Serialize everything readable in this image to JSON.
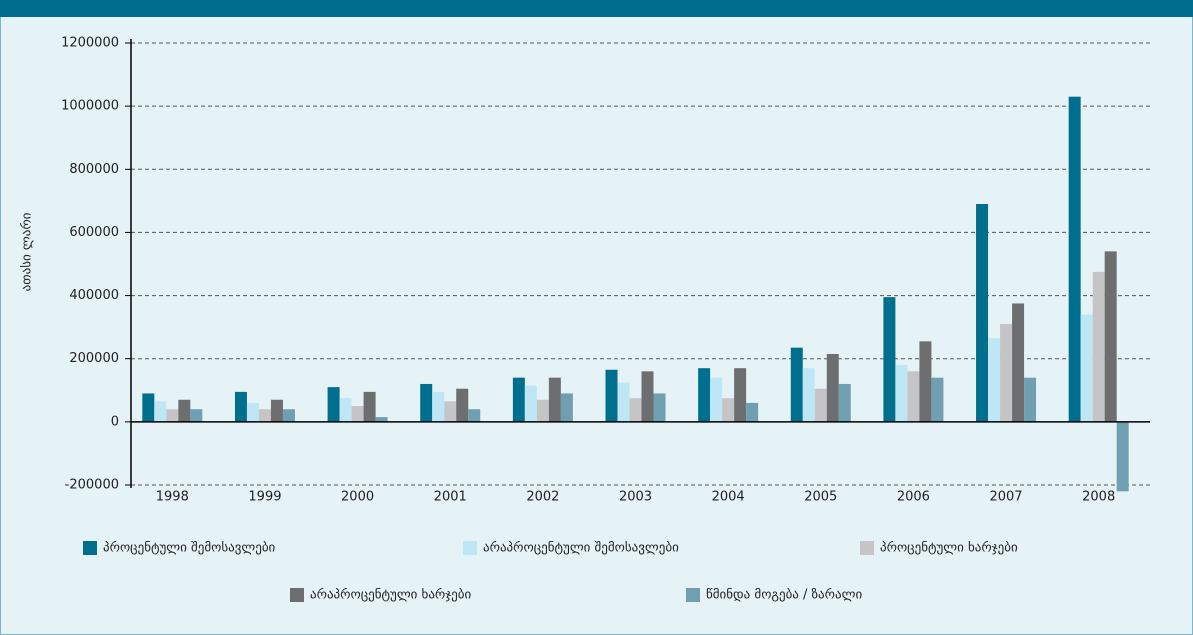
{
  "chart_data": {
    "type": "bar",
    "y_label": "ათასი ლარი",
    "categories": [
      "1998",
      "1999",
      "2000",
      "2001",
      "2002",
      "2003",
      "2004",
      "2005",
      "2006",
      "2007",
      "2008"
    ],
    "series": [
      {
        "name": "პროცენტული შემოსავლები",
        "color": "#006f8e",
        "values": [
          90000,
          95000,
          110000,
          120000,
          140000,
          165000,
          170000,
          235000,
          395000,
          690000,
          1030000
        ]
      },
      {
        "name": "არაპროცენტული შემოსავლები",
        "color": "#bfe6f5",
        "values": [
          65000,
          60000,
          75000,
          95000,
          115000,
          125000,
          140000,
          170000,
          180000,
          265000,
          340000
        ]
      },
      {
        "name": "პროცენტული ხარჯები",
        "color": "#c5c5c7",
        "values": [
          40000,
          40000,
          50000,
          65000,
          70000,
          75000,
          75000,
          105000,
          160000,
          310000,
          475000
        ]
      },
      {
        "name": "არაპროცენტული ხარჯები",
        "color": "#6d6e70",
        "values": [
          70000,
          70000,
          95000,
          105000,
          140000,
          160000,
          170000,
          215000,
          255000,
          375000,
          540000
        ]
      },
      {
        "name": "წმინდა მოგება / ზარალი",
        "color": "#6f9fb1",
        "values": [
          40000,
          40000,
          15000,
          40000,
          90000,
          90000,
          60000,
          120000,
          140000,
          140000,
          -220000
        ]
      }
    ],
    "ylim": [
      -200000,
      1200000
    ],
    "yticks": [
      -200000,
      0,
      200000,
      400000,
      600000,
      800000,
      1000000,
      1200000
    ],
    "grid": true
  }
}
